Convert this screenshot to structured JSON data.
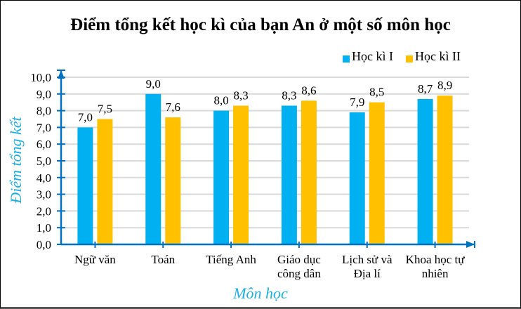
{
  "chart_data": {
    "type": "bar",
    "title": "Điểm tổng kết học kì của bạn An ở một số môn học",
    "xlabel": "Môn học",
    "ylabel": "Điểm tổng kết",
    "categories": [
      "Ngữ văn",
      "Toán",
      "Tiếng Anh",
      "Giáo dục công dân",
      "Lịch sử và Địa lí",
      "Khoa học tự nhiên"
    ],
    "category_lines": [
      [
        "Ngữ văn"
      ],
      [
        "Toán"
      ],
      [
        "Tiếng Anh"
      ],
      [
        "Giáo dục",
        "công dân"
      ],
      [
        "Lịch sử và",
        "Địa lí"
      ],
      [
        "Khoa học tự",
        "nhiên"
      ]
    ],
    "series": [
      {
        "name": "Học kì I",
        "color": "#00b0f0",
        "values": [
          7.0,
          9.0,
          8.0,
          8.3,
          7.9,
          8.7
        ],
        "labels": [
          "7,0",
          "9,0",
          "8,0",
          "8,3",
          "7,9",
          "8,7"
        ]
      },
      {
        "name": "Học kì II",
        "color": "#ffc000",
        "values": [
          7.5,
          7.6,
          8.3,
          8.6,
          8.5,
          8.9
        ],
        "labels": [
          "7,5",
          "7,6",
          "8,3",
          "8,6",
          "8,5",
          "8,9"
        ]
      }
    ],
    "ylim": [
      0,
      10
    ],
    "yticks": [
      "0,0",
      "1,0",
      "2,0",
      "3,0",
      "4,0",
      "5,0",
      "6,0",
      "7,0",
      "8,0",
      "9,0",
      "10,0"
    ],
    "grid": true,
    "legend_position": "top-right",
    "axis_color": "#0070c0",
    "label_color": "#1ab0e6"
  }
}
